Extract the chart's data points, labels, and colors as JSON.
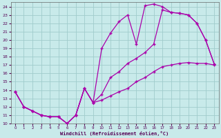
{
  "xlabel": "Windchill (Refroidissement éolien,°C)",
  "xlim": [
    -0.5,
    23.5
  ],
  "ylim": [
    10,
    24.5
  ],
  "xticks": [
    0,
    1,
    2,
    3,
    4,
    5,
    6,
    7,
    8,
    9,
    10,
    11,
    12,
    13,
    14,
    15,
    16,
    17,
    18,
    19,
    20,
    21,
    22,
    23
  ],
  "yticks": [
    10,
    11,
    12,
    13,
    14,
    15,
    16,
    17,
    18,
    19,
    20,
    21,
    22,
    23,
    24
  ],
  "bg_color": "#c8eaea",
  "grid_color": "#a0cccc",
  "line_color": "#aa00aa",
  "line1_x": [
    0,
    1,
    2,
    3,
    4,
    5,
    6,
    7,
    8,
    9,
    10,
    11,
    12,
    13,
    14,
    15,
    16,
    17,
    18,
    19,
    20,
    21,
    22,
    23
  ],
  "line1_y": [
    13.8,
    12.0,
    11.5,
    11.0,
    10.8,
    10.8,
    10.0,
    11.0,
    14.2,
    12.5,
    19.0,
    20.8,
    22.2,
    23.0,
    19.5,
    24.1,
    24.3,
    24.0,
    23.3,
    23.2,
    23.0,
    22.0,
    20.0,
    17.1
  ],
  "line2_x": [
    0,
    1,
    2,
    3,
    4,
    5,
    6,
    7,
    8,
    9,
    10,
    11,
    12,
    13,
    14,
    15,
    16,
    17,
    18,
    19,
    20,
    21,
    22,
    23
  ],
  "line2_y": [
    13.8,
    12.0,
    11.5,
    11.0,
    10.8,
    10.8,
    10.0,
    11.0,
    14.2,
    12.5,
    13.5,
    15.5,
    16.2,
    17.2,
    17.8,
    18.5,
    19.5,
    23.6,
    23.3,
    23.2,
    23.0,
    22.0,
    20.0,
    17.1
  ],
  "line3_x": [
    0,
    1,
    2,
    3,
    4,
    5,
    6,
    7,
    8,
    9,
    10,
    11,
    12,
    13,
    14,
    15,
    16,
    17,
    18,
    19,
    20,
    21,
    22,
    23
  ],
  "line3_y": [
    13.8,
    12.0,
    11.5,
    11.0,
    10.8,
    10.8,
    10.0,
    11.0,
    14.2,
    12.5,
    12.8,
    13.3,
    13.8,
    14.2,
    15.0,
    15.5,
    16.2,
    16.8,
    17.0,
    17.2,
    17.3,
    17.2,
    17.2,
    17.0
  ]
}
